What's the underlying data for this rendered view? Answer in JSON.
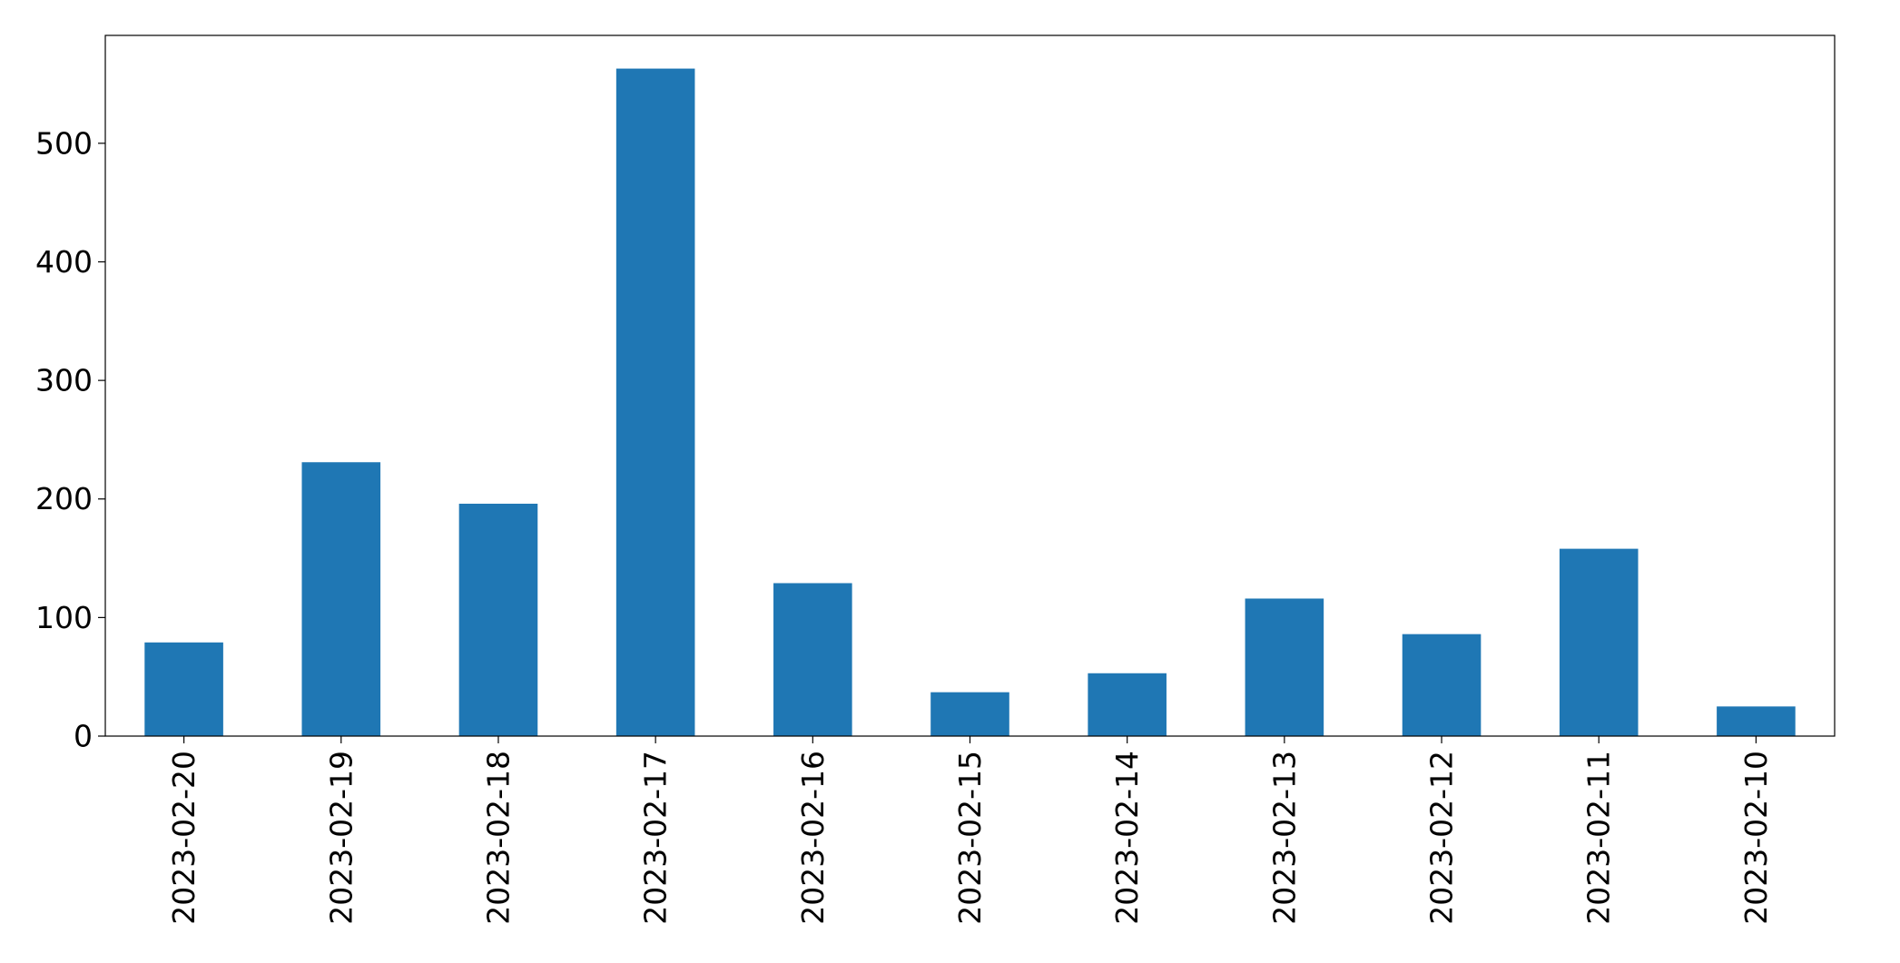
{
  "chart_data": {
    "type": "bar",
    "title": "",
    "xlabel": "",
    "ylabel": "",
    "categories": [
      "2023-02-20",
      "2023-02-19",
      "2023-02-18",
      "2023-02-17",
      "2023-02-16",
      "2023-02-15",
      "2023-02-14",
      "2023-02-13",
      "2023-02-12",
      "2023-02-11",
      "2023-02-10"
    ],
    "values": [
      79,
      231,
      196,
      563,
      129,
      37,
      53,
      116,
      86,
      158,
      25
    ],
    "ylim": [
      0,
      591
    ],
    "yticks": [
      0,
      100,
      200,
      300,
      400,
      500
    ],
    "ytick_labels": [
      "0",
      "100",
      "200",
      "300",
      "400",
      "500"
    ],
    "grid": false,
    "legend": "none",
    "bar_color": "#1f77b4"
  }
}
